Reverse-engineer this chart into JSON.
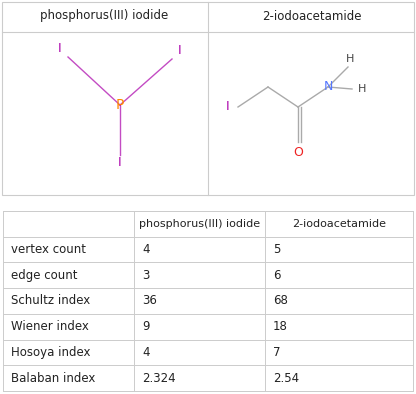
{
  "col1": "phosphorus(III) iodide",
  "col2": "2-iodoacetamide",
  "rows": [
    {
      "label": "vertex count",
      "v1": "4",
      "v2": "5"
    },
    {
      "label": "edge count",
      "v1": "3",
      "v2": "6"
    },
    {
      "label": "Schultz index",
      "v1": "36",
      "v2": "68"
    },
    {
      "label": "Wiener index",
      "v1": "9",
      "v2": "18"
    },
    {
      "label": "Hosoya index",
      "v1": "4",
      "v2": "7"
    },
    {
      "label": "Balaban index",
      "v1": "2.324",
      "v2": "2.54"
    }
  ],
  "bg_color": "#ffffff",
  "border_color": "#cccccc",
  "text_color": "#222222",
  "iodine_color": "#aa00aa",
  "phosphorus_color": "#ff8800",
  "oxygen_color": "#ee2222",
  "nitrogen_color": "#5577ff",
  "bond_color": "#aaaaaa",
  "h_color": "#444444"
}
